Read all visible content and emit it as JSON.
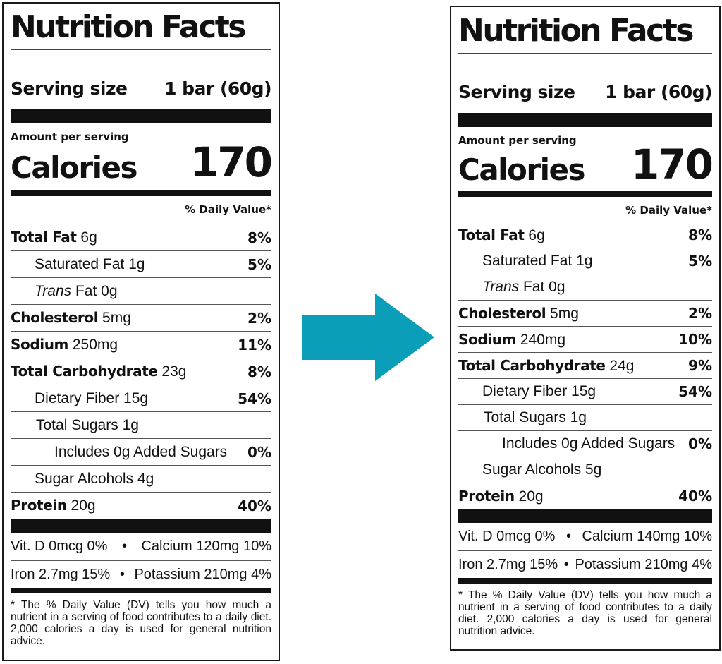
{
  "labels": {
    "title": "Nutrition Facts",
    "serving_label": "Serving size",
    "amount_per_serving": "Amount per serving",
    "calories_label": "Calories",
    "dv_header": "% Daily Value*",
    "total_fat": "Total Fat",
    "saturated_fat": "Saturated Fat",
    "trans": "Trans",
    "fat": "Fat",
    "cholesterol": "Cholesterol",
    "sodium": "Sodium",
    "total_carb": "Total Carbohydrate",
    "dietary_fiber": "Dietary Fiber",
    "total_sugars": "Total Sugars",
    "includes_added_sugars": "Includes 0g Added Sugars",
    "sugar_alcohols": "Sugar Alcohols",
    "protein": "Protein",
    "bullet": "•",
    "footnote": "* The % Daily Value (DV) tells you how much a nutrient in a serving of food contributes to a daily diet. 2,000 calories a day is used for general nutrition advice."
  },
  "arrow": {
    "color": "#0a9eb8",
    "icon": "right-arrow-icon"
  },
  "left": {
    "serving_size": "1 bar (60g)",
    "calories": "170",
    "total_fat": {
      "amount": "6g",
      "dv": "8%"
    },
    "saturated_fat": {
      "amount": "1g",
      "dv": "5%"
    },
    "trans_fat": {
      "amount": "0g"
    },
    "cholesterol": {
      "amount": "5mg",
      "dv": "2%"
    },
    "sodium": {
      "amount": "250mg",
      "dv": "11%"
    },
    "total_carb": {
      "amount": "23g",
      "dv": "8%"
    },
    "dietary_fiber": {
      "amount": "15g",
      "dv": "54%"
    },
    "total_sugars": {
      "amount": "1g"
    },
    "added_sugars": {
      "dv": "0%"
    },
    "sugar_alcohols": {
      "amount": "4g"
    },
    "protein": {
      "amount": "20g",
      "dv": "40%"
    },
    "vit_d": "Vit. D 0mcg 0%",
    "calcium": "Calcium 120mg 10%",
    "iron": "Iron 2.7mg 15%",
    "potassium": "Potassium 210mg 4%"
  },
  "right": {
    "serving_size": "1 bar (60g)",
    "calories": "170",
    "total_fat": {
      "amount": "6g",
      "dv": "8%"
    },
    "saturated_fat": {
      "amount": "1g",
      "dv": "5%"
    },
    "trans_fat": {
      "amount": "0g"
    },
    "cholesterol": {
      "amount": "5mg",
      "dv": "2%"
    },
    "sodium": {
      "amount": "240mg",
      "dv": "10%"
    },
    "total_carb": {
      "amount": "24g",
      "dv": "9%"
    },
    "dietary_fiber": {
      "amount": "15g",
      "dv": "54%"
    },
    "total_sugars": {
      "amount": "1g"
    },
    "added_sugars": {
      "dv": "0%"
    },
    "sugar_alcohols": {
      "amount": "5g"
    },
    "protein": {
      "amount": "20g",
      "dv": "40%"
    },
    "vit_d": "Vit. D 0mcg 0%",
    "calcium": "Calcium 140mg 10%",
    "iron": "Iron 2.7mg 15%",
    "potassium": "Potassium 210mg 4%"
  }
}
